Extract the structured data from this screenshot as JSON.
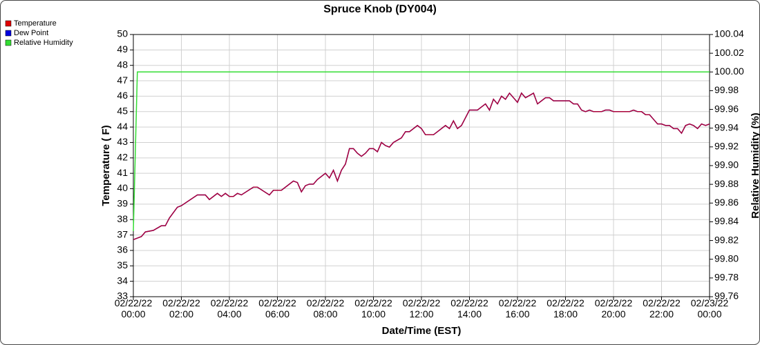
{
  "chart_data": {
    "type": "line",
    "title": "Spruce Knob (DY004)",
    "xlabel": "Date/Time (EST)",
    "ylabel": "Temperature ( F)",
    "y2label": "Relative Humidity (%)",
    "grid": true,
    "legend": "top-left",
    "xlim": [
      "02/22/22 00:00",
      "02/23/22 00:00"
    ],
    "xticks": [
      "02/22/22\n00:00",
      "02/22/22\n02:00",
      "02/22/22\n04:00",
      "02/22/22\n06:00",
      "02/22/22\n08:00",
      "02/22/22\n10:00",
      "02/22/22\n12:00",
      "02/22/22\n14:00",
      "02/22/22\n16:00",
      "02/22/22\n18:00",
      "02/22/22\n20:00",
      "02/22/22\n22:00",
      "02/23/22\n00:00"
    ],
    "ylim": [
      33,
      50
    ],
    "yticks": [
      33,
      34,
      35,
      36,
      37,
      38,
      39,
      40,
      41,
      42,
      43,
      44,
      45,
      46,
      47,
      48,
      49,
      50
    ],
    "y2lim": [
      99.76,
      100.04
    ],
    "y2ticks": [
      99.76,
      99.78,
      {
        "value": 99.8,
        "label": "99.80"
      },
      99.82,
      99.84,
      99.86,
      99.88,
      {
        "value": 99.9,
        "label": "99.90"
      },
      99.92,
      99.94,
      99.96,
      99.98,
      {
        "value": 100,
        "label": "100.00"
      },
      100.02,
      100.04
    ],
    "x": [
      "02/22/22 00:00",
      "02/22/22 00:10",
      "02/22/22 00:20",
      "02/22/22 00:30",
      "02/22/22 00:50",
      "02/22/22 01:10",
      "02/22/22 01:20",
      "02/22/22 01:30",
      "02/22/22 01:50",
      "02/22/22 02:00",
      "02/22/22 02:40",
      "02/22/22 03:00",
      "02/22/22 03:10",
      "02/22/22 03:30",
      "02/22/22 03:40",
      "02/22/22 03:50",
      "02/22/22 04:00",
      "02/22/22 04:10",
      "02/22/22 04:20",
      "02/22/22 04:30",
      "02/22/22 05:00",
      "02/22/22 05:10",
      "02/22/22 05:40",
      "02/22/22 05:50",
      "02/22/22 06:10",
      "02/22/22 06:40",
      "02/22/22 06:50",
      "02/22/22 07:00",
      "02/22/22 07:10",
      "02/22/22 07:20",
      "02/22/22 07:30",
      "02/22/22 07:40",
      "02/22/22 08:00",
      "02/22/22 08:10",
      "02/22/22 08:20",
      "02/22/22 08:30",
      "02/22/22 08:40",
      "02/22/22 08:50",
      "02/22/22 09:00",
      "02/22/22 09:10",
      "02/22/22 09:20",
      "02/22/22 09:30",
      "02/22/22 09:40",
      "02/22/22 09:50",
      "02/22/22 10:00",
      "02/22/22 10:10",
      "02/22/22 10:20",
      "02/22/22 10:30",
      "02/22/22 10:40",
      "02/22/22 10:50",
      "02/22/22 11:10",
      "02/22/22 11:20",
      "02/22/22 11:30",
      "02/22/22 11:50",
      "02/22/22 12:00",
      "02/22/22 12:10",
      "02/22/22 12:30",
      "02/22/22 13:00",
      "02/22/22 13:10",
      "02/22/22 13:20",
      "02/22/22 13:30",
      "02/22/22 13:40",
      "02/22/22 14:00",
      "02/22/22 14:20",
      "02/22/22 14:40",
      "02/22/22 14:50",
      "02/22/22 15:00",
      "02/22/22 15:10",
      "02/22/22 15:20",
      "02/22/22 15:30",
      "02/22/22 15:40",
      "02/22/22 16:00",
      "02/22/22 16:10",
      "02/22/22 16:20",
      "02/22/22 16:40",
      "02/22/22 16:50",
      "02/22/22 17:00",
      "02/22/22 17:10",
      "02/22/22 17:20",
      "02/22/22 17:30",
      "02/22/22 18:10",
      "02/22/22 18:20",
      "02/22/22 18:30",
      "02/22/22 18:40",
      "02/22/22 18:50",
      "02/22/22 19:00",
      "02/22/22 19:10",
      "02/22/22 19:30",
      "02/22/22 19:40",
      "02/22/22 19:50",
      "02/22/22 20:00",
      "02/22/22 20:40",
      "02/22/22 20:50",
      "02/22/22 21:00",
      "02/22/22 21:10",
      "02/22/22 21:20",
      "02/22/22 21:30",
      "02/22/22 21:40",
      "02/22/22 21:50",
      "02/22/22 22:00",
      "02/22/22 22:10",
      "02/22/22 22:20",
      "02/22/22 22:30",
      "02/22/22 22:40",
      "02/22/22 22:50",
      "02/22/22 23:00",
      "02/22/22 23:10",
      "02/22/22 23:20",
      "02/22/22 23:30",
      "02/22/22 23:40",
      "02/22/22 23:50",
      "02/23/22 00:00"
    ],
    "series": [
      {
        "name": "Temperature",
        "color": "#e00000",
        "values": [
          36.7,
          36.8,
          36.9,
          37.2,
          37.3,
          37.6,
          37.6,
          38.1,
          38.8,
          38.9,
          39.6,
          39.6,
          39.3,
          39.7,
          39.5,
          39.7,
          39.5,
          39.5,
          39.7,
          39.6,
          40.1,
          40.1,
          39.6,
          39.9,
          39.9,
          40.5,
          40.4,
          39.8,
          40.2,
          40.3,
          40.3,
          40.6,
          41.0,
          40.7,
          41.2,
          40.5,
          41.2,
          41.6,
          42.6,
          42.6,
          42.3,
          42.1,
          42.3,
          42.6,
          42.6,
          42.4,
          43.0,
          42.8,
          42.7,
          43.0,
          43.3,
          43.7,
          43.7,
          44.1,
          43.9,
          43.5,
          43.5,
          44.1,
          43.9,
          44.4,
          43.9,
          44.1,
          45.1,
          45.1,
          45.5,
          45.1,
          45.8,
          45.5,
          46.0,
          45.8,
          46.2,
          45.6,
          46.2,
          45.9,
          46.2,
          45.5,
          45.7,
          45.9,
          45.9,
          45.7,
          45.7,
          45.5,
          45.5,
          45.1,
          45.0,
          45.1,
          45.0,
          45.0,
          45.1,
          45.1,
          45.0,
          45.0,
          45.1,
          45.0,
          45.0,
          44.8,
          44.8,
          44.5,
          44.2,
          44.2,
          44.1,
          44.1,
          43.9,
          43.9,
          43.6,
          44.1,
          44.2,
          44.1,
          43.9,
          44.2,
          44.1,
          44.2
        ]
      },
      {
        "name": "Dew Point",
        "color": "#0000e0",
        "values": [
          36.7,
          36.8,
          36.9,
          37.2,
          37.3,
          37.6,
          37.6,
          38.1,
          38.8,
          38.9,
          39.6,
          39.6,
          39.3,
          39.7,
          39.5,
          39.7,
          39.5,
          39.5,
          39.7,
          39.6,
          40.1,
          40.1,
          39.6,
          39.9,
          39.9,
          40.5,
          40.4,
          39.8,
          40.2,
          40.3,
          40.3,
          40.6,
          41.0,
          40.7,
          41.2,
          40.5,
          41.2,
          41.6,
          42.6,
          42.6,
          42.3,
          42.1,
          42.3,
          42.6,
          42.6,
          42.4,
          43.0,
          42.8,
          42.7,
          43.0,
          43.3,
          43.7,
          43.7,
          44.1,
          43.9,
          43.5,
          43.5,
          44.1,
          43.9,
          44.4,
          43.9,
          44.1,
          45.1,
          45.1,
          45.5,
          45.1,
          45.8,
          45.5,
          46.0,
          45.8,
          46.2,
          45.6,
          46.2,
          45.9,
          46.2,
          45.5,
          45.7,
          45.9,
          45.9,
          45.7,
          45.7,
          45.5,
          45.5,
          45.1,
          45.0,
          45.1,
          45.0,
          45.0,
          45.1,
          45.1,
          45.0,
          45.0,
          45.1,
          45.0,
          45.0,
          44.8,
          44.8,
          44.5,
          44.2,
          44.2,
          44.1,
          44.1,
          43.9,
          43.9,
          43.6,
          44.1,
          44.2,
          44.1,
          43.9,
          44.2,
          44.1,
          44.2
        ]
      },
      {
        "name": "Relative Humidity",
        "color": "#33dd33",
        "axis": "y2",
        "values": [
          99.83,
          100,
          100,
          100,
          100,
          100,
          100,
          100,
          100,
          100,
          100,
          100,
          100,
          100,
          100,
          100,
          100,
          100,
          100,
          100,
          100,
          100,
          100,
          100,
          100,
          100,
          100,
          100,
          100,
          100,
          100,
          100,
          100,
          100,
          100,
          100,
          100,
          100,
          100,
          100,
          100,
          100,
          100,
          100,
          100,
          100,
          100,
          100,
          100,
          100,
          100,
          100,
          100,
          100,
          100,
          100,
          100,
          100,
          100,
          100,
          100,
          100,
          100,
          100,
          100,
          100,
          100,
          100,
          100,
          100,
          100,
          100,
          100,
          100,
          100,
          100,
          100,
          100,
          100,
          100,
          100,
          100,
          100,
          100,
          100,
          100,
          100,
          100,
          100,
          100,
          100,
          100,
          100,
          100,
          100,
          100,
          100,
          100,
          100,
          100,
          100,
          100,
          100,
          100,
          100,
          100,
          100,
          100,
          100,
          100,
          100,
          100
        ]
      }
    ]
  }
}
